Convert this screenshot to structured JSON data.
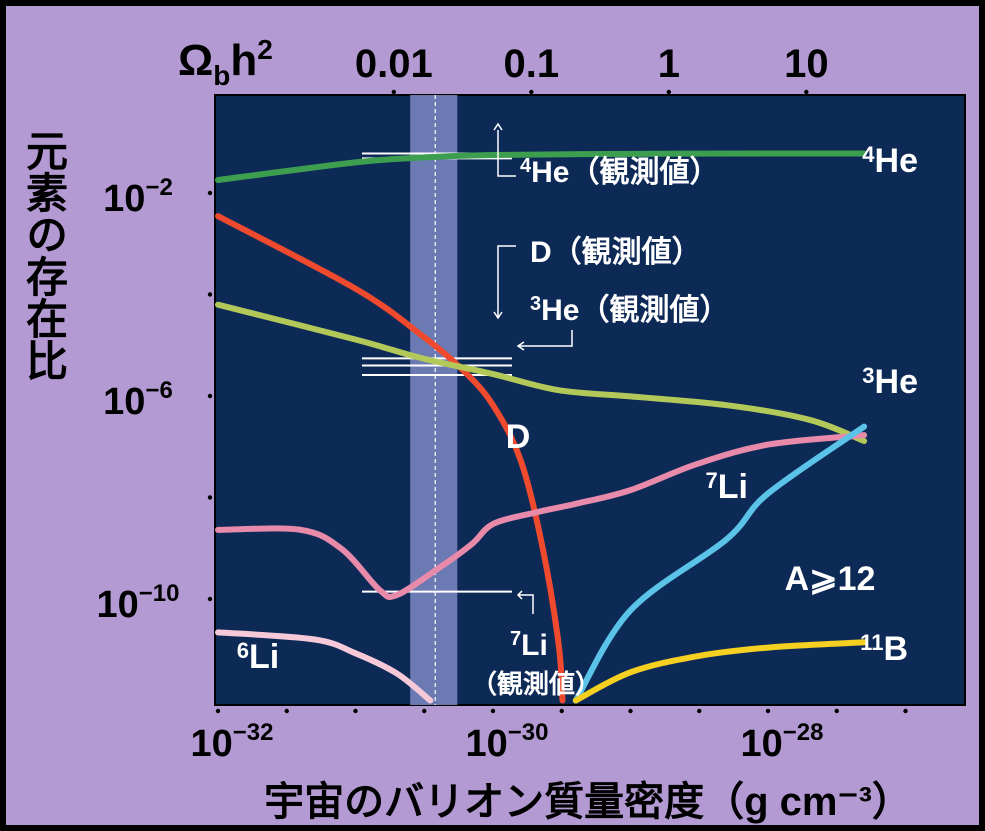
{
  "chart_data": {
    "type": "line",
    "title": "",
    "xlabel": "宇宙のバリオン質量密度（g cm⁻³）",
    "ylabel": "元素の存在比",
    "x_scale": "log",
    "y_scale": "log",
    "xlim": [
      1e-32,
      1e-27
    ],
    "ylim": [
      1e-12,
      1
    ],
    "top_axis": {
      "label_main": "Ω",
      "label_sub": "b",
      "label_tail": "h",
      "label_sup": "2",
      "ticks": [
        {
          "value": 0.01,
          "label": "0.01",
          "x_density": 1.9e-31
        },
        {
          "value": 0.1,
          "label": "0.1",
          "x_density": 1.9e-30
        },
        {
          "value": 1,
          "label": "1",
          "x_density": 1.9e-29
        },
        {
          "value": 10,
          "label": "10",
          "x_density": 1.9e-28
        }
      ]
    },
    "x_ticks": [
      {
        "value": 1e-32,
        "base": "10",
        "exp": "−32"
      },
      {
        "value": 1e-30,
        "base": "10",
        "exp": "−30"
      },
      {
        "value": 1e-28,
        "base": "10",
        "exp": "−28"
      }
    ],
    "y_ticks": [
      {
        "value": 0.01,
        "base": "10",
        "exp": "−2"
      },
      {
        "value": 1e-06,
        "base": "10",
        "exp": "−6"
      },
      {
        "value": 1e-10,
        "base": "10",
        "exp": "−10"
      }
    ],
    "observed_band": {
      "x_range": [
        2.5e-31,
        5.5e-31
      ],
      "center": 3.8e-31
    },
    "series": [
      {
        "name": "⁴He",
        "label_sup": "4",
        "label_text": "He",
        "color": "#3d9e4f",
        "points": [
          [
            1e-32,
            0.018
          ],
          [
            1e-31,
            0.04
          ],
          [
            3e-31,
            0.05
          ],
          [
            1e-30,
            0.056
          ],
          [
            1e-29,
            0.059
          ],
          [
            1e-28,
            0.06
          ],
          [
            5e-28,
            0.06
          ]
        ]
      },
      {
        "name": "D",
        "label_text": "D",
        "color": "#f04a2e",
        "points": [
          [
            1e-32,
            0.0035
          ],
          [
            1e-31,
            0.00013
          ],
          [
            3e-31,
            1.6e-05
          ],
          [
            6e-31,
            3.3e-06
          ],
          [
            1e-30,
            6.6e-07
          ],
          [
            1.6e-30,
            5.1e-08
          ],
          [
            2.3e-30,
            1e-09
          ],
          [
            3e-30,
            1.3e-11
          ],
          [
            3.2e-30,
            1e-12
          ]
        ]
      },
      {
        "name": "³He",
        "label_sup": "3",
        "label_text": "He",
        "color": "#b2c95a",
        "points": [
          [
            1e-32,
            6.3e-05
          ],
          [
            1e-31,
            1.3e-05
          ],
          [
            3e-31,
            5.6e-06
          ],
          [
            1e-30,
            2.7e-06
          ],
          [
            3e-30,
            1.3e-06
          ],
          [
            1e-29,
            9.8e-07
          ],
          [
            5e-29,
            6.6e-07
          ],
          [
            2e-28,
            3.4e-07
          ],
          [
            5e-28,
            1.3e-07
          ]
        ]
      },
      {
        "name": "⁷Li",
        "label_sup": "7",
        "label_text": "Li",
        "color": "#e88aaa",
        "points": [
          [
            1e-32,
            2.3e-09
          ],
          [
            4e-32,
            2.3e-09
          ],
          [
            8e-32,
            9.5e-10
          ],
          [
            1.5e-31,
            1.5e-10
          ],
          [
            2e-31,
            1.2e-10
          ],
          [
            4e-31,
            4e-10
          ],
          [
            7e-31,
            1.2e-09
          ],
          [
            1e-30,
            3e-09
          ],
          [
            2e-30,
            5e-09
          ],
          [
            4e-30,
            7.5e-09
          ],
          [
            1e-29,
            1.4e-08
          ],
          [
            3e-29,
            4.5e-08
          ],
          [
            1e-28,
            1.1e-07
          ],
          [
            5e-28,
            1.7e-07
          ]
        ]
      },
      {
        "name": "⁶Li",
        "label_sup": "6",
        "label_text": "Li",
        "color": "#f6c9d8",
        "points": [
          [
            1e-32,
            2.2e-11
          ],
          [
            5e-32,
            1.6e-11
          ],
          [
            1e-31,
            8.5e-12
          ],
          [
            2e-31,
            3.4e-12
          ],
          [
            3.5e-31,
            1e-12
          ]
        ]
      },
      {
        "name": "A≥12",
        "label_text": "A⩾12",
        "color": "#5cc3e8",
        "points": [
          [
            4e-30,
            1e-12
          ],
          [
            1e-29,
            6e-11
          ],
          [
            5e-29,
            1.5e-09
          ],
          [
            1e-28,
            1.2e-08
          ],
          [
            5e-28,
            2.5e-07
          ]
        ]
      },
      {
        "name": "¹¹B",
        "label_sup": "11",
        "label_text": "B",
        "color": "#f5d020",
        "points": [
          [
            4e-30,
            1e-12
          ],
          [
            1e-29,
            3.6e-12
          ],
          [
            3e-29,
            7.4e-12
          ],
          [
            1e-28,
            1.1e-11
          ],
          [
            5e-28,
            1.4e-11
          ]
        ]
      }
    ],
    "observations": [
      {
        "name": "⁴He（観測値）",
        "label_sup": "4",
        "label_text": "He（観測値）",
        "lines": [
          0.06,
          0.048
        ]
      },
      {
        "name": "D（観測値）",
        "label_text": "D（観測値）",
        "lines": [
          5.5e-06
        ]
      },
      {
        "name": "³He（観測値）",
        "label_sup": "3",
        "label_text": "He（観測値）",
        "lines": [
          4e-06,
          2.6e-06
        ]
      },
      {
        "name": "⁷Li（観測値）",
        "label_sup": "7",
        "label_text": "Li",
        "label_line2": "（観測値）",
        "lines": [
          1.4e-10
        ]
      }
    ]
  }
}
